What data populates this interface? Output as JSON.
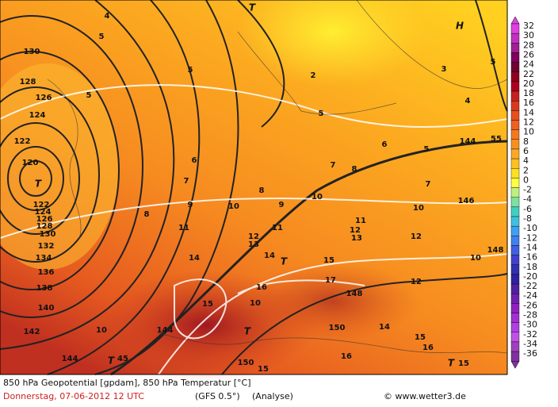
{
  "map": {
    "labels": [
      "130",
      "128",
      "126",
      "124",
      "122",
      "120",
      "T",
      "122",
      "124",
      "126",
      "128",
      "130",
      "132",
      "134",
      "136",
      "138",
      "140",
      "142",
      "144",
      "144",
      "144",
      "146",
      "148",
      "148",
      "150",
      "150",
      "5",
      "5",
      "5",
      "5",
      "5",
      "5",
      "55",
      "6",
      "6",
      "7",
      "7",
      "7",
      "8",
      "8",
      "8",
      "9",
      "9",
      "10",
      "10",
      "10",
      "10",
      "10",
      "11",
      "11",
      "11",
      "12",
      "13",
      "12",
      "13",
      "12",
      "14",
      "14",
      "T",
      "15",
      "16",
      "17",
      "12",
      "15",
      "10",
      "T",
      "14",
      "15",
      "16",
      "16",
      "15",
      "T",
      "45",
      "T",
      "15",
      "H",
      "T",
      "2",
      "3",
      "4",
      "4"
    ],
    "scale": {
      "values": [
        32,
        30,
        28,
        26,
        24,
        22,
        20,
        18,
        16,
        14,
        12,
        10,
        8,
        6,
        4,
        2,
        0,
        -2,
        -4,
        -6,
        -8,
        -10,
        -12,
        -14,
        -16,
        -18,
        -20,
        -22,
        -24,
        -26,
        -28,
        -30,
        -32,
        -34,
        -36
      ],
      "colors": [
        "#e040e0",
        "#c030c0",
        "#a02090",
        "#800060",
        "#700030",
        "#900020",
        "#b00020",
        "#c82020",
        "#d83820",
        "#e85020",
        "#f06020",
        "#f47820",
        "#f89020",
        "#fca828",
        "#ffc020",
        "#ffe020",
        "#ffff40",
        "#c0f080",
        "#80e0a0",
        "#40d0c0",
        "#40c0e0",
        "#40a0f0",
        "#4080f0",
        "#4060e0",
        "#4040d0",
        "#3030b0",
        "#3020a0",
        "#5020a0",
        "#7020b0",
        "#9020c0",
        "#a030d0",
        "#b040e0",
        "#c050e8",
        "#a040c0",
        "#8030a0"
      ]
    }
  },
  "footer": {
    "title": "850 hPa Geopotential [gpdam], 850 hPa Temperatur [°C]",
    "date": "Donnerstag, 07-06-2012  12 UTC",
    "model": "(GFS 0.5°)",
    "run": "(Analyse)",
    "credit": "© www.wetter3.de"
  }
}
